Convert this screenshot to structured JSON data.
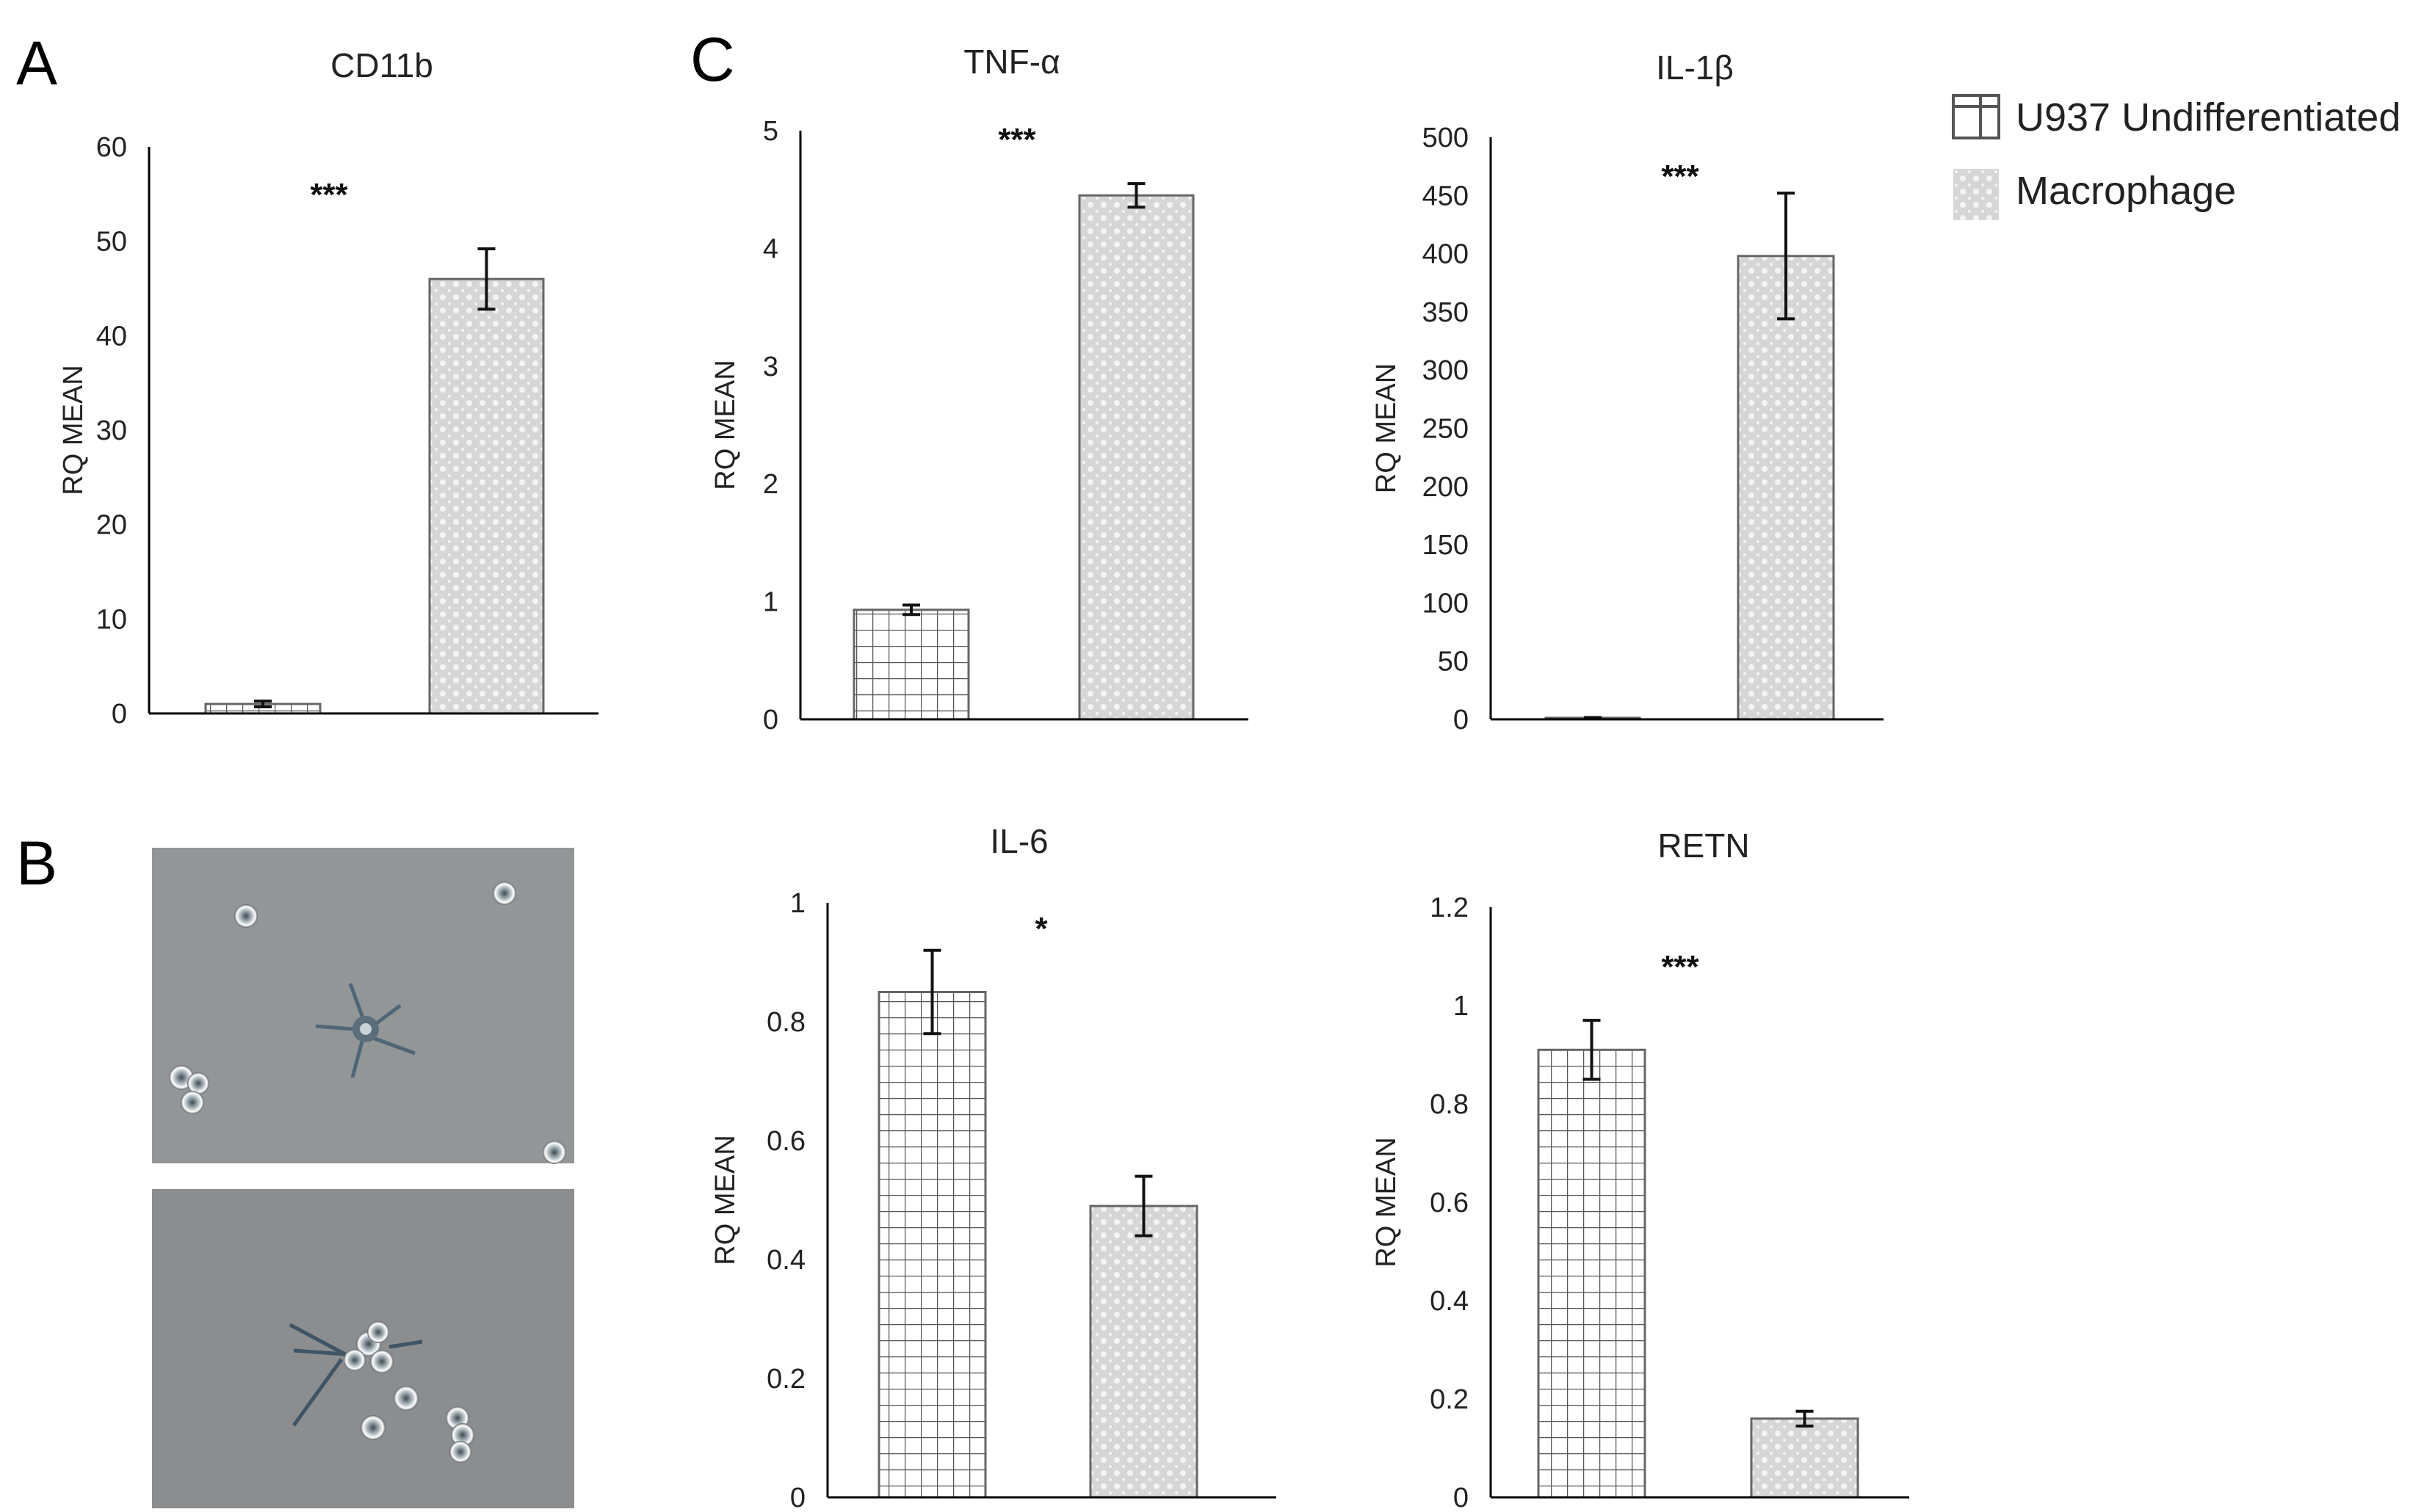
{
  "panels": {
    "a": "A",
    "b": "B",
    "c": "C"
  },
  "legend": {
    "undiff": "U937 Undifferentiated",
    "macro": "Macrophage"
  },
  "colors": {
    "grid_pattern_line": "#555555",
    "dot_pattern_bg": "#d8d8d8",
    "dot_pattern_dot": "#ffffff",
    "axis": "#000000",
    "micro_bg": "#8e9092"
  },
  "chart_data": [
    {
      "id": "cd11b",
      "type": "bar",
      "title": "CD11b",
      "ylabel": "RQ MEAN",
      "categories": [
        "U937 Undifferentiated",
        "Macrophage"
      ],
      "values": [
        1,
        46
      ],
      "errors": [
        0.3,
        3.2
      ],
      "ylim": [
        0,
        60
      ],
      "ticks": [
        "0",
        "10",
        "20",
        "30",
        "40",
        "50",
        "60"
      ],
      "tick_values": [
        0,
        10,
        20,
        30,
        40,
        50,
        60
      ],
      "significance": "***"
    },
    {
      "id": "tnf",
      "type": "bar",
      "title": "TNF-α",
      "ylabel": "RQ MEAN",
      "categories": [
        "U937 Undifferentiated",
        "Macrophage"
      ],
      "values": [
        0.93,
        4.45
      ],
      "errors": [
        0.04,
        0.1
      ],
      "ylim": [
        0,
        5
      ],
      "ticks": [
        "0",
        "1",
        "2",
        "3",
        "4",
        "5"
      ],
      "tick_values": [
        0,
        1,
        2,
        3,
        4,
        5
      ],
      "significance": "***"
    },
    {
      "id": "il1b",
      "type": "bar",
      "title": "IL-1β",
      "ylabel": "RQ MEAN",
      "categories": [
        "U937 Undifferentiated",
        "Macrophage"
      ],
      "values": [
        1,
        398
      ],
      "errors": [
        0.5,
        54
      ],
      "ylim": [
        0,
        500
      ],
      "ticks": [
        "0",
        "50",
        "100",
        "150",
        "200",
        "250",
        "300",
        "350",
        "400",
        "450",
        "500"
      ],
      "tick_values": [
        0,
        50,
        100,
        150,
        200,
        250,
        300,
        350,
        400,
        450,
        500
      ],
      "significance": "***"
    },
    {
      "id": "il6",
      "type": "bar",
      "title": "IL-6",
      "ylabel": "RQ MEAN",
      "categories": [
        "U937 Undifferentiated",
        "Macrophage"
      ],
      "values": [
        0.85,
        0.49
      ],
      "errors": [
        0.07,
        0.05
      ],
      "ylim": [
        0,
        1
      ],
      "ticks": [
        "0",
        "0.2",
        "0.4",
        "0.6",
        "0.8",
        "1"
      ],
      "tick_values": [
        0,
        0.2,
        0.4,
        0.6,
        0.8,
        1
      ],
      "significance": "*"
    },
    {
      "id": "retn",
      "type": "bar",
      "title": "RETN",
      "ylabel": "RQ MEAN",
      "categories": [
        "U937 Undifferentiated",
        "Macrophage"
      ],
      "values": [
        0.91,
        0.16
      ],
      "errors": [
        0.06,
        0.015
      ],
      "ylim": [
        0,
        1.2
      ],
      "ticks": [
        "0",
        "0.2",
        "0.4",
        "0.6",
        "0.8",
        "1",
        "1.2"
      ],
      "tick_values": [
        0,
        0.2,
        0.4,
        0.6,
        0.8,
        1,
        1.2
      ],
      "significance": "***"
    }
  ]
}
